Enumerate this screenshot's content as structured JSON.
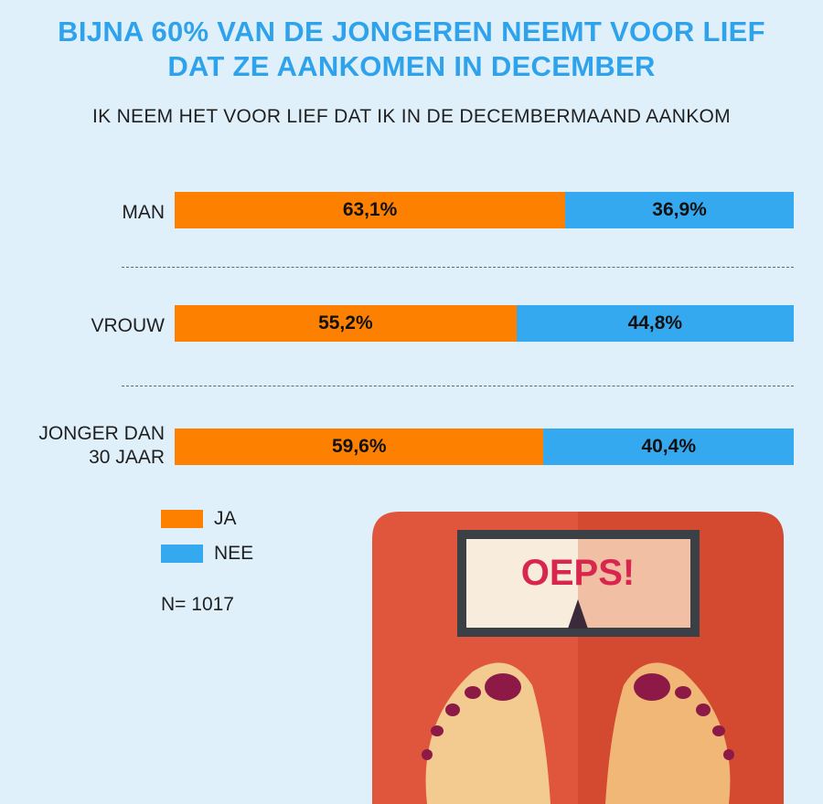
{
  "title_lines": [
    "BIJNA 60% VAN DE JONGEREN NEEMT VOOR LIEF",
    "DAT ZE AANKOMEN IN DECEMBER"
  ],
  "subtitle": "IK NEEM HET VOOR LIEF DAT IK IN DE DECEMBERMAAND AANKOM",
  "colors": {
    "ja": "#fe8000",
    "nee": "#35a9f0",
    "title": "#2ea3ec"
  },
  "chart_data": {
    "type": "bar",
    "orientation": "horizontal-stacked-100",
    "title": "BIJNA 60% VAN DE JONGEREN NEEMT VOOR LIEF DAT ZE AANKOMEN IN DECEMBER",
    "subtitle": "IK NEEM HET VOOR LIEF DAT IK IN DE DECEMBERMAAND AANKOM",
    "categories": [
      "MAN",
      "VROUW",
      "JONGER DAN 30 JAAR"
    ],
    "category_lines": [
      [
        "MAN"
      ],
      [
        "VROUW"
      ],
      [
        "JONGER DAN",
        "30 JAAR"
      ]
    ],
    "series": [
      {
        "name": "JA",
        "values": [
          63.1,
          55.2,
          59.6
        ],
        "labels": [
          "63,1%",
          "55,2%",
          "59,6%"
        ]
      },
      {
        "name": "NEE",
        "values": [
          36.9,
          44.8,
          40.4
        ],
        "labels": [
          "36,9%",
          "44,8%",
          "40,4%"
        ]
      }
    ],
    "xlim": [
      0,
      100
    ],
    "legend": "bottom-left"
  },
  "legend": [
    {
      "label": "JA",
      "color": "#fe8000"
    },
    {
      "label": "NEE",
      "color": "#35a9f0"
    }
  ],
  "sample_note": "N= 1017",
  "scale_display": "OEPS!"
}
